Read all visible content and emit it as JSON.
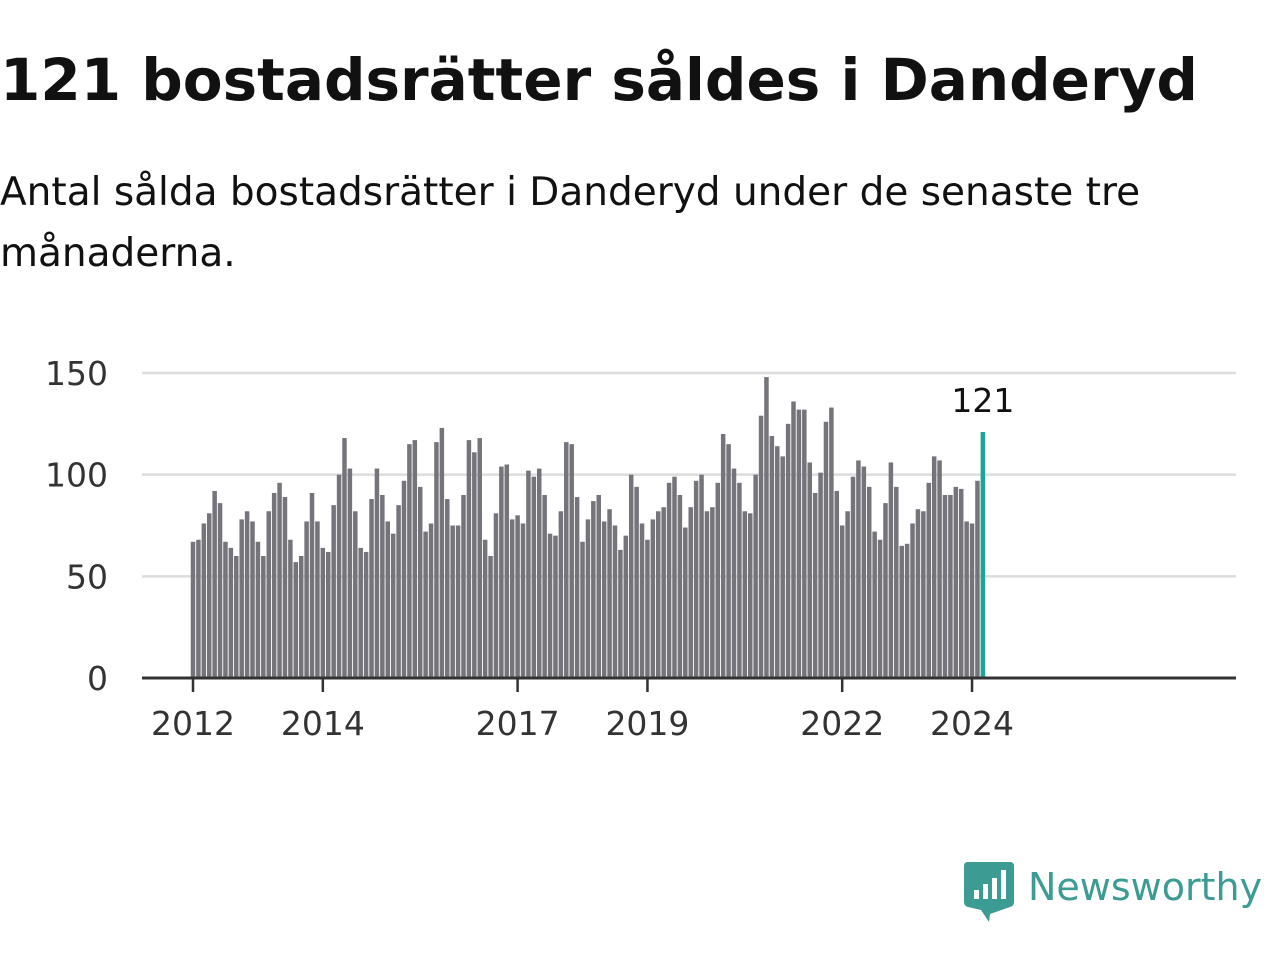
{
  "header": {
    "title": "121 bostadsrätter såldes i Danderyd",
    "subtitle": "Antal sålda bostadsrätter i Danderyd under de senaste tre månaderna."
  },
  "brand": {
    "name": "Newsworthy",
    "color": "#3c9b93",
    "icon": "newsworthy-logo-icon"
  },
  "chart_data": {
    "type": "bar",
    "title": "",
    "xlabel": "",
    "ylabel": "",
    "ylim": [
      0,
      150
    ],
    "yticks": [
      0,
      50,
      100,
      150
    ],
    "grid": true,
    "legend": "none",
    "start": "2012-01",
    "x_tick_labels": [
      {
        "label": "2012",
        "index": 0
      },
      {
        "label": "2014",
        "index": 24
      },
      {
        "label": "2017",
        "index": 60
      },
      {
        "label": "2019",
        "index": 84
      },
      {
        "label": "2022",
        "index": 120
      },
      {
        "label": "2024",
        "index": 144
      }
    ],
    "bar_color": "#75747b",
    "highlight_color": "#1ba499",
    "highlight_label": "121",
    "values": [
      67,
      68,
      76,
      81,
      92,
      86,
      67,
      64,
      60,
      78,
      82,
      77,
      67,
      60,
      82,
      91,
      96,
      89,
      68,
      57,
      60,
      77,
      91,
      77,
      64,
      62,
      85,
      100,
      118,
      103,
      82,
      64,
      62,
      88,
      103,
      90,
      77,
      71,
      85,
      97,
      115,
      117,
      94,
      72,
      76,
      116,
      123,
      88,
      75,
      75,
      90,
      117,
      111,
      118,
      68,
      60,
      81,
      104,
      105,
      78,
      80,
      76,
      102,
      99,
      103,
      90,
      71,
      70,
      82,
      116,
      115,
      89,
      67,
      78,
      87,
      90,
      77,
      83,
      75,
      63,
      70,
      100,
      94,
      76,
      68,
      78,
      82,
      84,
      96,
      99,
      90,
      74,
      84,
      97,
      100,
      82,
      84,
      96,
      120,
      115,
      103,
      96,
      82,
      81,
      100,
      129,
      148,
      119,
      114,
      109,
      125,
      136,
      132,
      132,
      106,
      91,
      101,
      126,
      133,
      92,
      75,
      82,
      99,
      107,
      104,
      94,
      72,
      68,
      86,
      106,
      94,
      65,
      66,
      76,
      83,
      82,
      96,
      109,
      107,
      90,
      90,
      94,
      93,
      77,
      76,
      97,
      121
    ]
  }
}
